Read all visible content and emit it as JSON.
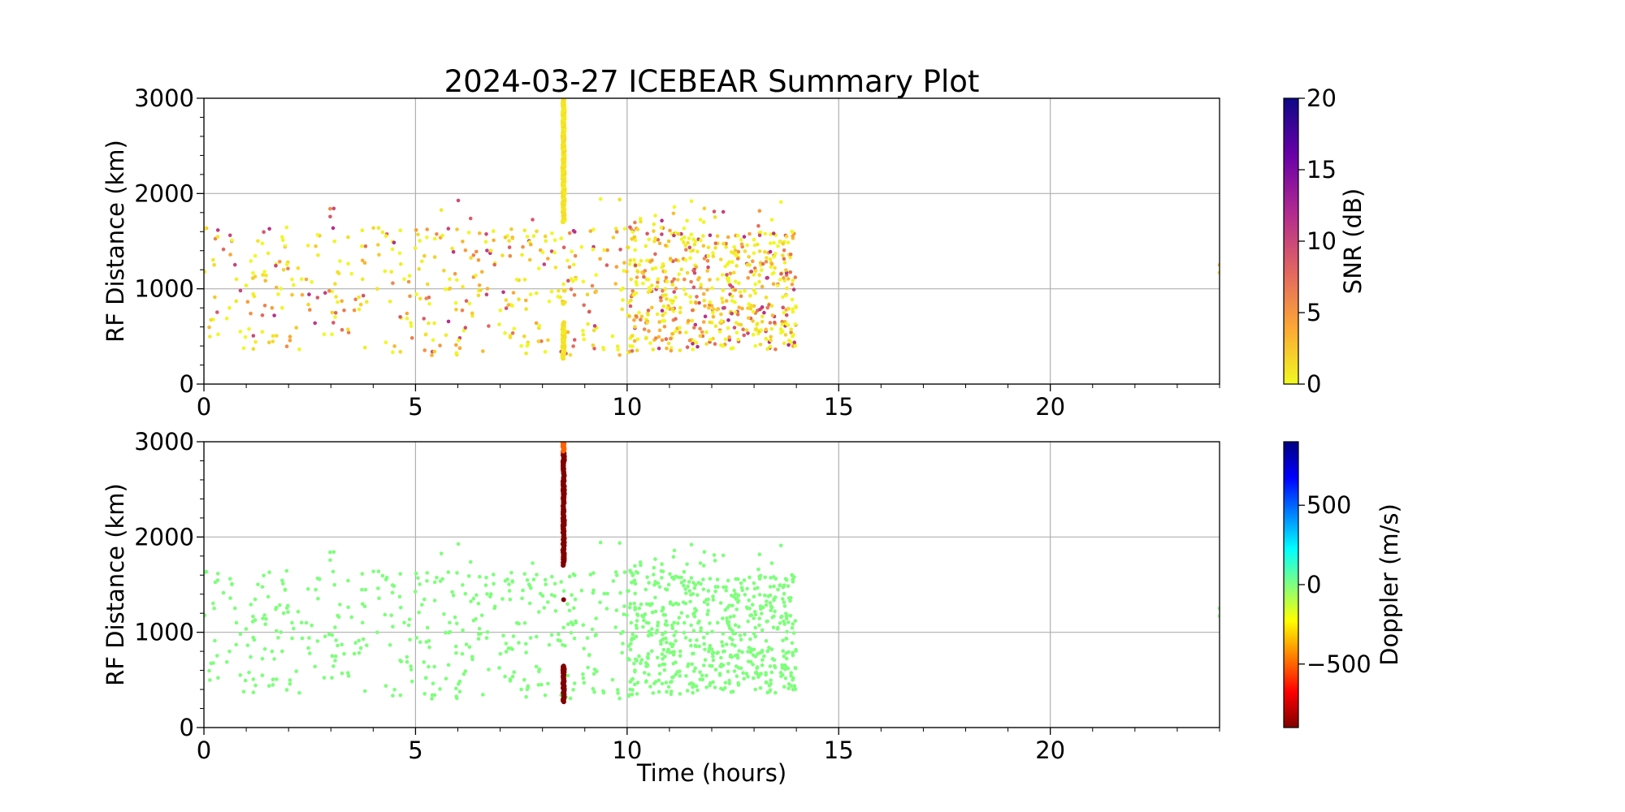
{
  "chart_data": [
    {
      "type": "scatter",
      "title": "2024-03-27 ICEBEAR Summary Plot",
      "xlabel": "",
      "ylabel": "RF Distance (km)",
      "xlim": [
        0,
        24
      ],
      "ylim": [
        0,
        3000
      ],
      "x_ticks": [
        0,
        5,
        10,
        15,
        20
      ],
      "y_ticks": [
        0,
        1000,
        2000,
        3000
      ],
      "grid": true,
      "color_variable": "SNR",
      "colorbar": {
        "label": "SNR (dB)",
        "range": [
          0,
          20
        ],
        "ticks": [
          0,
          5,
          10,
          15,
          20
        ],
        "colormap": "plasma_r",
        "colors": [
          "#f0f921",
          "#fca636",
          "#e16462",
          "#b12a90",
          "#6a00a8",
          "#0d0887"
        ]
      },
      "vertical_streak": {
        "x": 8.5,
        "y_min": 270,
        "y_max": 3000,
        "gaps": [
          [
            650,
            1700
          ]
        ]
      },
      "point_count_estimate": 1000
    },
    {
      "type": "scatter",
      "title": "",
      "xlabel": "Time (hours)",
      "ylabel": "RF Distance (km)",
      "xlim": [
        0,
        24
      ],
      "ylim": [
        0,
        3000
      ],
      "x_ticks": [
        0,
        5,
        10,
        15,
        20
      ],
      "y_ticks": [
        0,
        1000,
        2000,
        3000
      ],
      "grid": true,
      "color_variable": "Doppler",
      "colorbar": {
        "label": "Doppler (m/s)",
        "range": [
          -900,
          900
        ],
        "ticks": [
          -500,
          0,
          500
        ],
        "tick_labels": [
          "−500",
          "0",
          "500"
        ],
        "colormap": "jet_r",
        "colors": [
          "#800000",
          "#ff0000",
          "#ff8000",
          "#ffff00",
          "#80ff80",
          "#00ffff",
          "#0080ff",
          "#0000ff",
          "#000080"
        ]
      },
      "scatter_color": "#7dff7a",
      "streak_color": "#800000",
      "vertical_streak": {
        "x": 8.5,
        "y_min": 270,
        "y_max": 3000,
        "gaps": [
          [
            650,
            1700
          ]
        ]
      },
      "point_count_estimate": 1000
    }
  ]
}
